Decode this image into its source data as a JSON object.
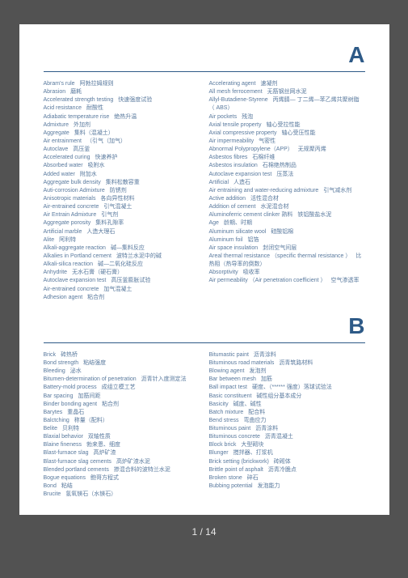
{
  "page": {
    "current": 1,
    "total": 14
  },
  "colors": {
    "page_bg": "#ffffff",
    "body_bg": "#525252",
    "heading": "#2e5a87",
    "text": "#5a7a9e"
  },
  "sections": [
    {
      "letter": "A",
      "left": [
        {
          "en": "Abram's rule",
          "zh": "阿勃拉姆规则"
        },
        {
          "en": "Abrasion",
          "zh": "磨耗"
        },
        {
          "en": "Accelerated strength testing",
          "zh": "快速强度试验"
        },
        {
          "en": "Acid resistance",
          "zh": "耐酸性"
        },
        {
          "en": "Adiabatic temperature rise",
          "zh": "绝热升温"
        },
        {
          "en": "Admixture",
          "zh": "外加剂"
        },
        {
          "en": "Aggregate",
          "zh": "集料（混凝土）"
        },
        {
          "en": "Air entrainment",
          "zh": "（引气（加气）"
        },
        {
          "en": "Autoclave",
          "zh": "高压釜"
        },
        {
          "en": "Accelerated curing",
          "zh": "快速养护"
        },
        {
          "en": "Absorbed water",
          "zh": "吸附水"
        },
        {
          "en": "Added water",
          "zh": "附加水"
        },
        {
          "en": "Aggregate bulk density",
          "zh": "集料松散容重"
        },
        {
          "en": "Auti-corrosion Admixture",
          "zh": "防锈剂"
        },
        {
          "en": "Anisotropic materials",
          "zh": "各向异性材料"
        },
        {
          "en": "Air-entrained concrete",
          "zh": "引气混凝土"
        },
        {
          "en": "Air Entrain Admixture",
          "zh": "引气剂"
        },
        {
          "en": "Aggregate porosity",
          "zh": "集料孔隙率"
        },
        {
          "en": "Artificial marble",
          "zh": "人造大理石"
        },
        {
          "en": "Alite",
          "zh": "阿利特"
        },
        {
          "en": "Alkali-aggregate reaction",
          "zh": "碱—集料反应"
        },
        {
          "en": "Alkalies in Portland cement",
          "zh": "波特兰水泥中的碱"
        },
        {
          "en": "Alkali-silica reaction",
          "zh": "碱—二氧化硅反应"
        },
        {
          "en": "Anhydrite",
          "zh": "无水石膏（硬石膏）"
        },
        {
          "en": "Autoclave expansion test",
          "zh": "高压釜膨胀试验"
        },
        {
          "en": "Air-entrained concrete",
          "zh": "加气混凝土"
        },
        {
          "en": "Adhesion agent",
          "zh": "粘合剂"
        }
      ],
      "right": [
        {
          "en": "Accelerating agent",
          "zh": "速凝剂"
        },
        {
          "en": "All mesh ferrocement",
          "zh": "无筋钢丝网水泥"
        },
        {
          "en": "Allyl-Butadiene-Styrene",
          "zh": "丙烯腈— 丁二烯—苯乙烯共聚树脂（ ABS）"
        },
        {
          "en": "Air pockets",
          "zh": "残泡"
        },
        {
          "en": "Axial tensile property",
          "zh": "轴心受拉性能"
        },
        {
          "en": "Axial compressive property",
          "zh": "轴心受压性能"
        },
        {
          "en": "Air impermeability",
          "zh": "气密性"
        },
        {
          "en": "Abnormal Polypropylene（APP）",
          "zh": "无规聚丙烯"
        },
        {
          "en": "Asbestos fibres",
          "zh": "石棉纤维"
        },
        {
          "en": "Asbestos insulation",
          "zh": "石棉绝热制品"
        },
        {
          "en": "Autoclave expansion test",
          "zh": "压蒸法"
        },
        {
          "en": "Artificial",
          "zh": "人造石"
        },
        {
          "en": "Air entraining and water-reducing admixture",
          "zh": "引气减水剂"
        },
        {
          "en": "Active addition",
          "zh": "活性混合材"
        },
        {
          "en": "Addition of cement",
          "zh": "水泥混合材"
        },
        {
          "en": "Aluminoferric cement clinker 熟料",
          "zh": "铁铝酸盐水泥"
        },
        {
          "en": "Age",
          "zh": "龄期、时期"
        },
        {
          "en": "Aluminum silicate wool",
          "zh": "硅酸铝棉"
        },
        {
          "en": "Aluminum foil",
          "zh": "铝箔"
        },
        {
          "en": "Air space insulation",
          "zh": "封闭空气间层"
        },
        {
          "en": "Areal thermal resistance    （specific thermal resistance    ）",
          "zh": "比热阻（热导率的倒数）"
        },
        {
          "en": "Absorptivity",
          "zh": "吸收率"
        },
        {
          "en": "Air permeability    （Air penetration coefficient  ）",
          "zh": "空气渗透率"
        }
      ]
    },
    {
      "letter": "B",
      "left": [
        {
          "en": "Brick",
          "zh": "砖热桥"
        },
        {
          "en": "Bond strength",
          "zh": "粘结强度"
        },
        {
          "en": "Bleeding",
          "zh": "泌水"
        },
        {
          "en": "Bitumen-determination of penetration",
          "zh": "沥青针入度测定法"
        },
        {
          "en": "Battery-mold process",
          "zh": "成组立模工艺"
        },
        {
          "en": "Bar spacing",
          "zh": "加筋间距"
        },
        {
          "en": "Binder bonding agent",
          "zh": "粘合剂"
        },
        {
          "en": "Barytes",
          "zh": "重晶石"
        },
        {
          "en": "Balctching",
          "zh": "称量（配料）"
        },
        {
          "en": "Belite",
          "zh": "贝利特"
        },
        {
          "en": "Blaxial behavior",
          "zh": "双轴性质"
        },
        {
          "en": "Blaine fineness",
          "zh": "勃来恩、细度"
        },
        {
          "en": "Blast-furnace slag",
          "zh": "高炉矿渣"
        },
        {
          "en": "Blast-furnace slag cements",
          "zh": "高炉矿渣水泥"
        },
        {
          "en": "Blended portland cements",
          "zh": "掺混合料的波特兰水泥"
        },
        {
          "en": "Bogue equations",
          "zh": "鲍哥方程式"
        },
        {
          "en": "Bond",
          "zh": "粘结"
        },
        {
          "en": "Brucite",
          "zh": "氢氧镁石（水镁石）"
        }
      ],
      "right": [
        {
          "en": "Bitumastic paint",
          "zh": "沥青涂料"
        },
        {
          "en": "Bituminous road materials",
          "zh": "沥青筑路材料"
        },
        {
          "en": "Blowing agent",
          "zh": "发泡剂"
        },
        {
          "en": "Bar between mesh",
          "zh": "加筋"
        },
        {
          "en": "Ball impact test",
          "zh": "硬度、（******   强度）落球试验法"
        },
        {
          "en": "Basic constituent",
          "zh": "碱性组分基本成分"
        },
        {
          "en": "Basicity",
          "zh": "碱度、碱性"
        },
        {
          "en": "Batch mixture",
          "zh": "配合料"
        },
        {
          "en": "Bend stress",
          "zh": "弯曲应力"
        },
        {
          "en": "Bituminous paint",
          "zh": "沥青涂料"
        },
        {
          "en": "Bituminous concrete",
          "zh": "沥青混凝土"
        },
        {
          "en": "Block brick",
          "zh": "大型砌块"
        },
        {
          "en": "Blunger",
          "zh": "搅拌器、打浆机"
        },
        {
          "en": "Brick setting (brickwork)",
          "zh": "砖砌体"
        },
        {
          "en": "Brittle point of asphalt",
          "zh": "沥青冷脆点"
        },
        {
          "en": "Broken stone",
          "zh": "碎石"
        },
        {
          "en": "Bubbing potential",
          "zh": "发泡能力"
        }
      ]
    }
  ]
}
